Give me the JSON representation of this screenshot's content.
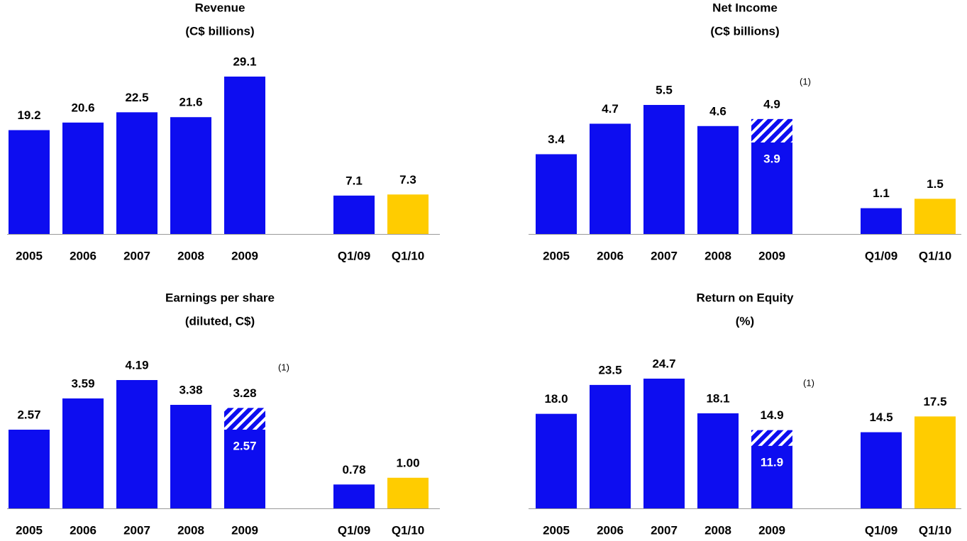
{
  "chart_data": [
    {
      "type": "bar",
      "title": "Revenue",
      "subtitle": "(C$ billions)",
      "categories": [
        "2005",
        "2006",
        "2007",
        "2008",
        "2009",
        "Q1/09",
        "Q1/10"
      ],
      "values": [
        19.2,
        20.6,
        22.5,
        21.6,
        29.1,
        7.1,
        7.3
      ],
      "colors": [
        "#0d0df0",
        "#0d0df0",
        "#0d0df0",
        "#0d0df0",
        "#0d0df0",
        "#0d0df0",
        "#ffcc00"
      ]
    },
    {
      "type": "bar",
      "title": "Net Income",
      "subtitle": "(C$ billions)",
      "categories": [
        "2005",
        "2006",
        "2007",
        "2008",
        "2009",
        "Q1/09",
        "Q1/10"
      ],
      "values": [
        3.4,
        4.7,
        5.5,
        4.6,
        4.9,
        1.1,
        1.5
      ],
      "base_values": [
        null,
        null,
        null,
        null,
        3.9,
        null,
        null
      ],
      "note": "(1)",
      "colors": [
        "#0d0df0",
        "#0d0df0",
        "#0d0df0",
        "#0d0df0",
        "#0d0df0",
        "#0d0df0",
        "#ffcc00"
      ]
    },
    {
      "type": "bar",
      "title": "Earnings per share",
      "subtitle": "(diluted, C$)",
      "categories": [
        "2005",
        "2006",
        "2007",
        "2008",
        "2009",
        "Q1/09",
        "Q1/10"
      ],
      "values": [
        2.57,
        3.59,
        4.19,
        3.38,
        3.28,
        0.78,
        1.0
      ],
      "value_labels": [
        "2.57",
        "3.59",
        "4.19",
        "3.38",
        "3.28",
        "0.78",
        "1.00"
      ],
      "base_values": [
        null,
        null,
        null,
        null,
        2.57,
        null,
        null
      ],
      "note": "(1)",
      "colors": [
        "#0d0df0",
        "#0d0df0",
        "#0d0df0",
        "#0d0df0",
        "#0d0df0",
        "#0d0df0",
        "#ffcc00"
      ]
    },
    {
      "type": "bar",
      "title": "Return on Equity",
      "subtitle": "(%)",
      "categories": [
        "2005",
        "2006",
        "2007",
        "2008",
        "2009",
        "Q1/09",
        "Q1/10"
      ],
      "values": [
        18.0,
        23.5,
        24.7,
        18.1,
        14.9,
        14.5,
        17.5
      ],
      "value_labels": [
        "18.0",
        "23.5",
        "24.7",
        "18.1",
        "14.9",
        "14.5",
        "17.5"
      ],
      "base_values": [
        null,
        null,
        null,
        null,
        11.9,
        null,
        null
      ],
      "note": "(1)",
      "colors": [
        "#0d0df0",
        "#0d0df0",
        "#0d0df0",
        "#0d0df0",
        "#0d0df0",
        "#0d0df0",
        "#ffcc00"
      ]
    }
  ]
}
